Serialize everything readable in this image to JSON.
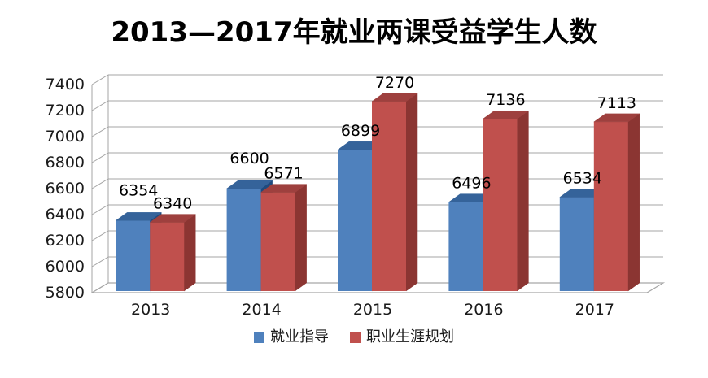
{
  "title": "2013—2017年就业两课受益学生人数",
  "chart_data": {
    "type": "bar",
    "style": "3d-clustered-column",
    "title": "2013—2017年就业两课受益学生人数",
    "categories": [
      "2013",
      "2014",
      "2015",
      "2016",
      "2017"
    ],
    "series": [
      {
        "name": "就业指导",
        "color": "#4F81BD",
        "top_color": "#35639A",
        "side_color": "#1F4A7D",
        "values": [
          6354,
          6600,
          6899,
          6496,
          6534
        ]
      },
      {
        "name": "职业生涯规划",
        "color": "#C0504D",
        "top_color": "#9E403E",
        "side_color": "#8B3532",
        "values": [
          6340,
          6571,
          7270,
          7136,
          7113
        ]
      }
    ],
    "ylim": [
      5800,
      7400
    ],
    "ytick_step": 200,
    "yticks": [
      "5800",
      "6000",
      "6200",
      "6400",
      "6600",
      "6800",
      "7000",
      "7200",
      "7400"
    ],
    "grid": true,
    "data_labels": true,
    "legend_position": "bottom",
    "gridline_color": "#A6A6A6",
    "text_color": "#1a1a1a",
    "label_color": "#000000",
    "background": "#FFFFFF"
  }
}
